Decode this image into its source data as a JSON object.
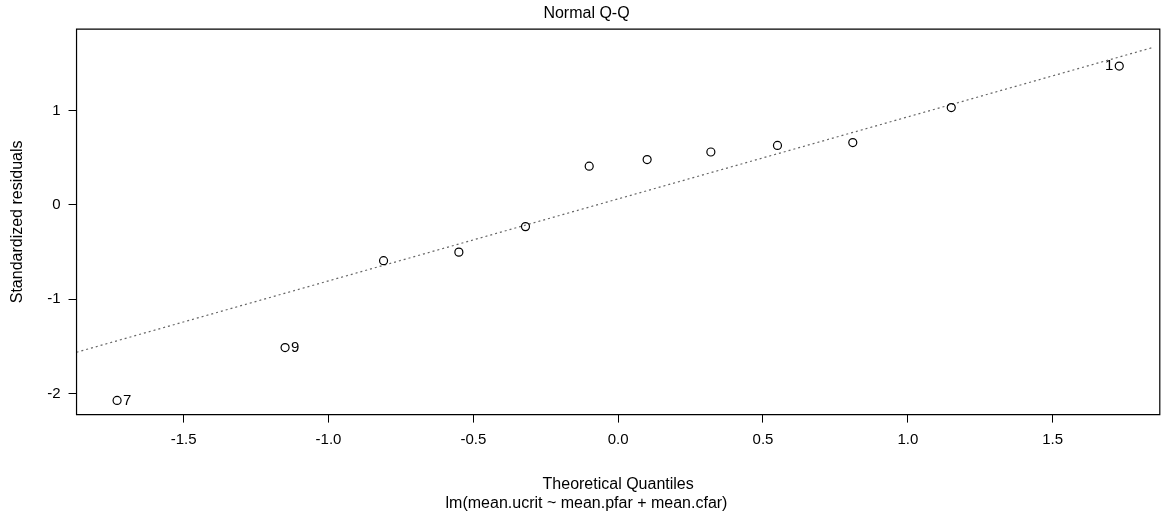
{
  "chart_data": {
    "type": "scatter",
    "title": "Normal Q-Q",
    "subtitle": "lm(mean.ucrit ~ mean.pfar + mean.cfar)",
    "xlabel": "Theoretical Quantiles",
    "ylabel": "Standardized residuals",
    "xlim": [
      -1.87,
      1.87
    ],
    "ylim": [
      -2.22,
      1.86
    ],
    "xticks": [
      {
        "value": -1.5,
        "label": "-1.5"
      },
      {
        "value": -1,
        "label": "-1.0"
      },
      {
        "value": -0.5,
        "label": "-0.5"
      },
      {
        "value": 0,
        "label": "0.0"
      },
      {
        "value": 0.5,
        "label": "0.5"
      },
      {
        "value": 1,
        "label": "1.0"
      },
      {
        "value": 1.5,
        "label": "1.5"
      }
    ],
    "yticks": [
      -2,
      -1,
      0,
      1
    ],
    "grid": false,
    "legend": false,
    "marker": "circle",
    "series": [
      {
        "color": "#000000",
        "x": [
          -1.73,
          -1.15,
          -0.81,
          -0.55,
          -0.32,
          -0.1,
          0.1,
          0.32,
          0.55,
          0.81,
          1.15,
          1.73
        ],
        "values": [
          -2.07,
          -1.51,
          -0.59,
          -0.5,
          -0.23,
          0.41,
          0.48,
          0.56,
          0.63,
          0.66,
          1.03,
          1.47
        ]
      },
      {
        "type": "line",
        "color": "#666666",
        "line_style": "dotted",
        "marker": "none",
        "x": [
          -1.87,
          1.85
        ],
        "values": [
          -1.56,
          1.67
        ]
      }
    ],
    "annotations": [
      {
        "text": "7",
        "x": -1.73,
        "y": -2.07
      },
      {
        "text": "9",
        "x": -1.15,
        "y": -1.51
      },
      {
        "text": "1",
        "x": 1.73,
        "y": 1.47
      }
    ]
  }
}
